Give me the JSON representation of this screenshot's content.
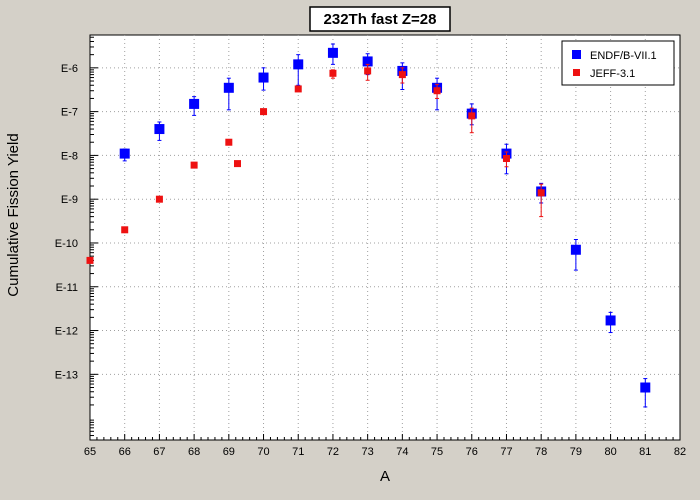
{
  "chart_data": {
    "type": "scatter",
    "title": "232Th fast Z=28",
    "xlabel": "A",
    "ylabel": "Cumulative Fission Yield",
    "xlim": [
      65,
      82
    ],
    "ylim_log10": [
      -14.5,
      -5.25
    ],
    "y_scale": "log",
    "x_ticks": [
      65,
      66,
      67,
      68,
      69,
      70,
      71,
      72,
      73,
      74,
      75,
      76,
      77,
      78,
      79,
      80,
      81,
      82
    ],
    "y_ticks": [
      {
        "exp": -6,
        "label": "E-6"
      },
      {
        "exp": -7,
        "label": "E-7"
      },
      {
        "exp": -8,
        "label": "E-8"
      },
      {
        "exp": -9,
        "label": "E-9"
      },
      {
        "exp": -10,
        "label": "E-10"
      },
      {
        "exp": -11,
        "label": "E-11"
      },
      {
        "exp": -12,
        "label": "E-12"
      },
      {
        "exp": -13,
        "label": "E-13"
      }
    ],
    "grid": true,
    "legend_position": "top-right",
    "series": [
      {
        "name": "ENDF/B-VII.1",
        "color": "#0000ff",
        "marker": "square-large",
        "points": [
          {
            "x": 66,
            "y": 1.1e-08,
            "ylo": 7.5e-09,
            "yhi": 1.4e-08
          },
          {
            "x": 67,
            "y": 4e-08,
            "ylo": 2.2e-08,
            "yhi": 5.8e-08
          },
          {
            "x": 68,
            "y": 1.5e-07,
            "ylo": 8.2e-08,
            "yhi": 2.2e-07
          },
          {
            "x": 69,
            "y": 3.5e-07,
            "ylo": 1.1e-07,
            "yhi": 5.8e-07
          },
          {
            "x": 70,
            "y": 6e-07,
            "ylo": 3.1e-07,
            "yhi": 1e-06
          },
          {
            "x": 71,
            "y": 1.2e-06,
            "ylo": 4e-07,
            "yhi": 2e-06
          },
          {
            "x": 72,
            "y": 2.2e-06,
            "ylo": 1.2e-06,
            "yhi": 3.5e-06
          },
          {
            "x": 73,
            "y": 1.4e-06,
            "ylo": 7e-07,
            "yhi": 2.1e-06
          },
          {
            "x": 74,
            "y": 8.5e-07,
            "ylo": 3.2e-07,
            "yhi": 1.3e-06
          },
          {
            "x": 75,
            "y": 3.5e-07,
            "ylo": 1.1e-07,
            "yhi": 5.8e-07
          },
          {
            "x": 76,
            "y": 9e-08,
            "ylo": 5e-08,
            "yhi": 1.5e-07
          },
          {
            "x": 77,
            "y": 1.1e-08,
            "ylo": 3.8e-09,
            "yhi": 1.8e-08
          },
          {
            "x": 78,
            "y": 1.5e-09,
            "ylo": 8.2e-10,
            "yhi": 2.3e-09
          },
          {
            "x": 79,
            "y": 7e-11,
            "ylo": 2.4e-11,
            "yhi": 1.2e-10
          },
          {
            "x": 80,
            "y": 1.7e-12,
            "ylo": 9e-13,
            "yhi": 2.6e-12
          },
          {
            "x": 81,
            "y": 5e-14,
            "ylo": 1.8e-14,
            "yhi": 8e-14
          }
        ]
      },
      {
        "name": "JEFF-3.1",
        "color": "#ee1111",
        "marker": "square-small",
        "points": [
          {
            "x": 65,
            "y": 4e-11
          },
          {
            "x": 66,
            "y": 2e-10
          },
          {
            "x": 67,
            "y": 1e-09
          },
          {
            "x": 68,
            "y": 6e-09
          },
          {
            "x": 69,
            "y": 2e-08
          },
          {
            "x": 69.25,
            "y": 6.5e-09
          },
          {
            "x": 70,
            "y": 1e-07
          },
          {
            "x": 71,
            "y": 3.3e-07
          },
          {
            "x": 72,
            "y": 7.5e-07,
            "ylo": 5.8e-07,
            "yhi": 9e-07
          },
          {
            "x": 73,
            "y": 8.5e-07,
            "ylo": 5.2e-07,
            "yhi": 1.2e-06
          },
          {
            "x": 74,
            "y": 7e-07,
            "ylo": 4.5e-07,
            "yhi": 1e-06
          },
          {
            "x": 75,
            "y": 3e-07,
            "ylo": 2e-07,
            "yhi": 4.2e-07
          },
          {
            "x": 76,
            "y": 8e-08,
            "ylo": 3.3e-08,
            "yhi": 1.2e-07
          },
          {
            "x": 77,
            "y": 8.5e-09,
            "ylo": 5.5e-09,
            "yhi": 1.2e-08
          },
          {
            "x": 78,
            "y": 1.4e-09,
            "ylo": 4e-10,
            "yhi": 2.2e-09
          }
        ]
      }
    ]
  }
}
